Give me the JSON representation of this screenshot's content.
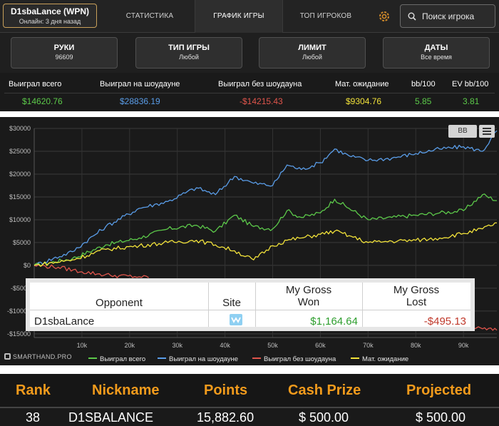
{
  "profile": {
    "name": "D1sbaLance (WPN)",
    "status": "Онлайн: 3 дня назад"
  },
  "nav": {
    "tabs": [
      "СТАТИСТИКА",
      "ГРАФИК ИГРЫ",
      "ТОП ИГРОКОВ"
    ],
    "active": "ГРАФИК ИГРЫ"
  },
  "search": {
    "placeholder": "Поиск игрока"
  },
  "filters": [
    {
      "title": "РУКИ",
      "value": "96609"
    },
    {
      "title": "ТИП ИГРЫ",
      "value": "Любой"
    },
    {
      "title": "ЛИМИТ",
      "value": "Любой"
    },
    {
      "title": "ДАТЫ",
      "value": "Все время"
    }
  ],
  "stats": {
    "headers": [
      "Выиграл всего",
      "Выиграл на шоудауне",
      "Выиграл без шоудауна",
      "Мат. ожидание",
      "bb/100",
      "EV bb/100"
    ],
    "values": [
      "$14620.76",
      "$28836.19",
      "-$14215.43",
      "$9304.76",
      "5.85",
      "3.81"
    ],
    "colors": [
      "#5cc94a",
      "#5a9de8",
      "#e0554c",
      "#f2e23a",
      "#5cc94a",
      "#5cc94a"
    ]
  },
  "chart_controls": {
    "bb_label": "BB"
  },
  "chart_data": {
    "type": "line",
    "y_tick_labels": [
      "$30000",
      "$25000",
      "$20000",
      "$15000",
      "$10000",
      "$5000",
      "$0",
      "-$5000",
      "-$10000",
      "-$15000"
    ],
    "y_ticks": [
      30000,
      25000,
      20000,
      15000,
      10000,
      5000,
      0,
      -5000,
      -10000,
      -15000
    ],
    "ylim": [
      -15800,
      30000
    ],
    "x_tick_labels": [
      "10k",
      "20k",
      "30k",
      "40k",
      "50k",
      "60k",
      "70k",
      "80k",
      "90k"
    ],
    "x_ticks": [
      10000,
      20000,
      30000,
      40000,
      50000,
      60000,
      70000,
      80000,
      90000
    ],
    "xlim": [
      0,
      97000
    ],
    "grid": true,
    "legend_position": "bottom",
    "series": [
      {
        "name": "Выиграл всего",
        "color": "#5cc94a",
        "x": [
          0,
          8000,
          15000,
          22000,
          28000,
          34000,
          38000,
          42000,
          46000,
          50000,
          53000,
          56000,
          60000,
          63000,
          66000,
          70000,
          75000,
          80000,
          85000,
          90000,
          94000,
          97000
        ],
        "y": [
          0,
          1500,
          4500,
          6000,
          8000,
          8800,
          7500,
          11000,
          8500,
          8000,
          12000,
          10500,
          11500,
          14500,
          12500,
          10000,
          10500,
          11000,
          11500,
          12000,
          15500,
          14200
        ]
      },
      {
        "name": "Выиграл на шоудауне",
        "color": "#5a9de8",
        "x": [
          0,
          8000,
          15000,
          22000,
          28000,
          34000,
          38000,
          42000,
          46000,
          50000,
          53000,
          56000,
          60000,
          63000,
          66000,
          70000,
          75000,
          80000,
          85000,
          90000,
          94000,
          97000
        ],
        "y": [
          0,
          3000,
          8500,
          12500,
          14000,
          17000,
          15500,
          19500,
          18000,
          17500,
          22000,
          21000,
          22500,
          25500,
          24000,
          23000,
          23500,
          24500,
          25500,
          26000,
          25000,
          29500
        ]
      },
      {
        "name": "Выиграл без шоудауна",
        "color": "#e0554c",
        "x": [
          0,
          5000,
          10000,
          16000,
          22000,
          24000,
          85000,
          90000,
          94000,
          97000
        ],
        "y": [
          0,
          -400,
          -1400,
          -2200,
          -2500,
          -2700,
          -12800,
          -13400,
          -13900,
          -14200
        ]
      },
      {
        "name": "Мат. ожидание",
        "color": "#f2e23a",
        "x": [
          0,
          8000,
          15000,
          22000,
          28000,
          34000,
          38000,
          42000,
          46000,
          50000,
          53000,
          56000,
          60000,
          63000,
          66000,
          70000,
          75000,
          80000,
          85000,
          90000,
          94000,
          97000
        ],
        "y": [
          0,
          1200,
          3500,
          4300,
          5000,
          5500,
          4500,
          3200,
          1200,
          4300,
          5500,
          6000,
          6800,
          7500,
          6500,
          5000,
          5300,
          5500,
          6000,
          7000,
          8000,
          9300
        ]
      }
    ]
  },
  "credit": "SMARTHAND.PRO",
  "overlay_table": {
    "headers": [
      "Opponent",
      "Site",
      "My Gross Won",
      "My Gross Lost"
    ],
    "header_lines": {
      "won": [
        "My Gross",
        "Won"
      ],
      "lost": [
        "My Gross",
        "Lost"
      ]
    },
    "row": {
      "opponent": "D1sbaLance",
      "won": "$1,164.64",
      "lost": "-$495.13"
    },
    "won_color": "#2e9e2e",
    "lost_color": "#c0392b"
  },
  "leaderboard": {
    "headers": [
      "Rank",
      "Nickname",
      "Points",
      "Cash Prize",
      "Projected"
    ],
    "row": {
      "rank": "38",
      "nickname": "D1SBALANCE",
      "points": "15,882.60",
      "cash_prize": "$ 500.00",
      "projected": "$ 500.00"
    },
    "header_color": "#f29b1c"
  }
}
